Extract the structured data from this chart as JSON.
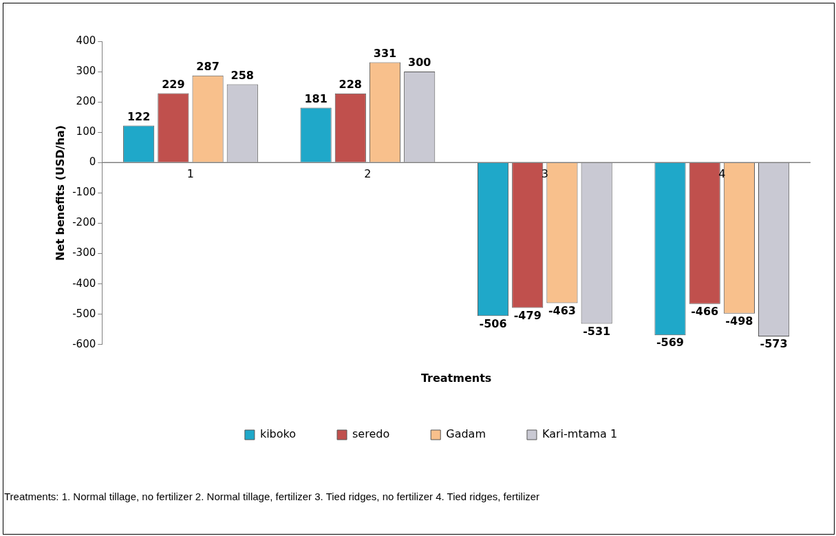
{
  "chart_data": {
    "type": "bar",
    "xlabel": "Treatments",
    "ylabel": "Net benefits (USD/ha)",
    "categories": [
      "1",
      "2",
      "3",
      "4"
    ],
    "series": [
      {
        "name": "kiboko",
        "color": "#1fa8c9",
        "values": [
          122,
          181,
          -506,
          -569
        ]
      },
      {
        "name": "seredo",
        "color": "#c0504d",
        "values": [
          229,
          228,
          -479,
          -466
        ]
      },
      {
        "name": "Gadam",
        "color": "#f8c08c",
        "values": [
          287,
          331,
          -463,
          -498
        ]
      },
      {
        "name": "Kari-mtama 1",
        "color": "#c9c9d3",
        "values": [
          258,
          300,
          -531,
          -573
        ]
      }
    ],
    "ylim": [
      -600,
      400
    ],
    "yticks": [
      -600,
      -500,
      -400,
      -300,
      -200,
      -100,
      0,
      100,
      200,
      300,
      400
    ],
    "grid": false,
    "legend": "bottom",
    "data_labels": true,
    "annotations": [
      "Treatments: 1. Normal tillage, no fertilizer 2. Normal tillage, fertilizer 3. Tied ridges, no fertilizer 4. Tied ridges, fertilizer"
    ]
  }
}
